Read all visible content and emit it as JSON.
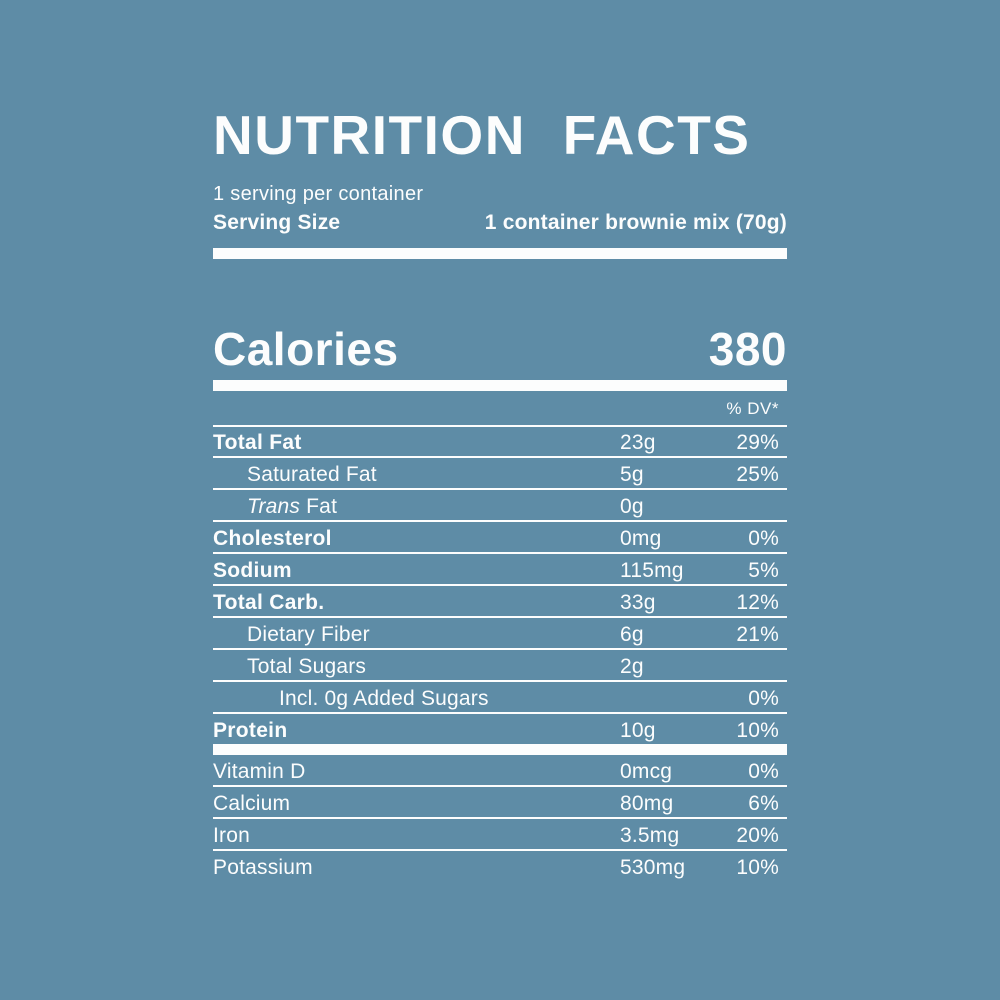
{
  "colors": {
    "background": "#5E8CA6",
    "text": "#FCFDFD"
  },
  "label": {
    "title": "NUTRITION FACTS",
    "servings_per_container": "1 serving per container",
    "serving_size_label": "Serving Size",
    "serving_size_value": "1 container brownie mix (70g)",
    "calories_label": "Calories",
    "calories_value": "380",
    "dv_header": "% DV*",
    "rows": [
      {
        "label": "Total Fat",
        "bold": true,
        "indent": 0,
        "amount": "23g",
        "dv": "29%",
        "sep": "thin"
      },
      {
        "label": "Saturated Fat",
        "bold": false,
        "indent": 1,
        "amount": "5g",
        "dv": "25%",
        "sep": "thin"
      },
      {
        "italic_prefix": "Trans",
        "label": " Fat",
        "bold": false,
        "indent": 1,
        "amount": "0g",
        "dv": "",
        "sep": "thin"
      },
      {
        "label": "Cholesterol",
        "bold": true,
        "indent": 0,
        "amount": "0mg",
        "dv": "0%",
        "sep": "thin"
      },
      {
        "label": "Sodium",
        "bold": true,
        "indent": 0,
        "amount": "115mg",
        "dv": "5%",
        "sep": "thin"
      },
      {
        "label": "Total Carb.",
        "bold": true,
        "indent": 0,
        "amount": "33g",
        "dv": "12%",
        "sep": "thin"
      },
      {
        "label": "Dietary Fiber",
        "bold": false,
        "indent": 1,
        "amount": "6g",
        "dv": "21%",
        "sep": "thin"
      },
      {
        "label": "Total Sugars",
        "bold": false,
        "indent": 1,
        "amount": "2g",
        "dv": "",
        "sep": "thin"
      },
      {
        "label": "Incl. 0g Added Sugars",
        "bold": false,
        "indent": 2,
        "amount": "",
        "dv": "0%",
        "sep": "thin"
      },
      {
        "label": "Protein",
        "bold": true,
        "indent": 0,
        "amount": "10g",
        "dv": "10%",
        "sep": "thick"
      },
      {
        "label": "Vitamin D",
        "bold": false,
        "indent": 0,
        "amount": "0mcg",
        "dv": "0%",
        "sep": "thin"
      },
      {
        "label": "Calcium",
        "bold": false,
        "indent": 0,
        "amount": "80mg",
        "dv": "6%",
        "sep": "thin"
      },
      {
        "label": "Iron",
        "bold": false,
        "indent": 0,
        "amount": "3.5mg",
        "dv": "20%",
        "sep": "thin"
      },
      {
        "label": "Potassium",
        "bold": false,
        "indent": 0,
        "amount": "530mg",
        "dv": "10%",
        "sep": "none"
      }
    ]
  }
}
